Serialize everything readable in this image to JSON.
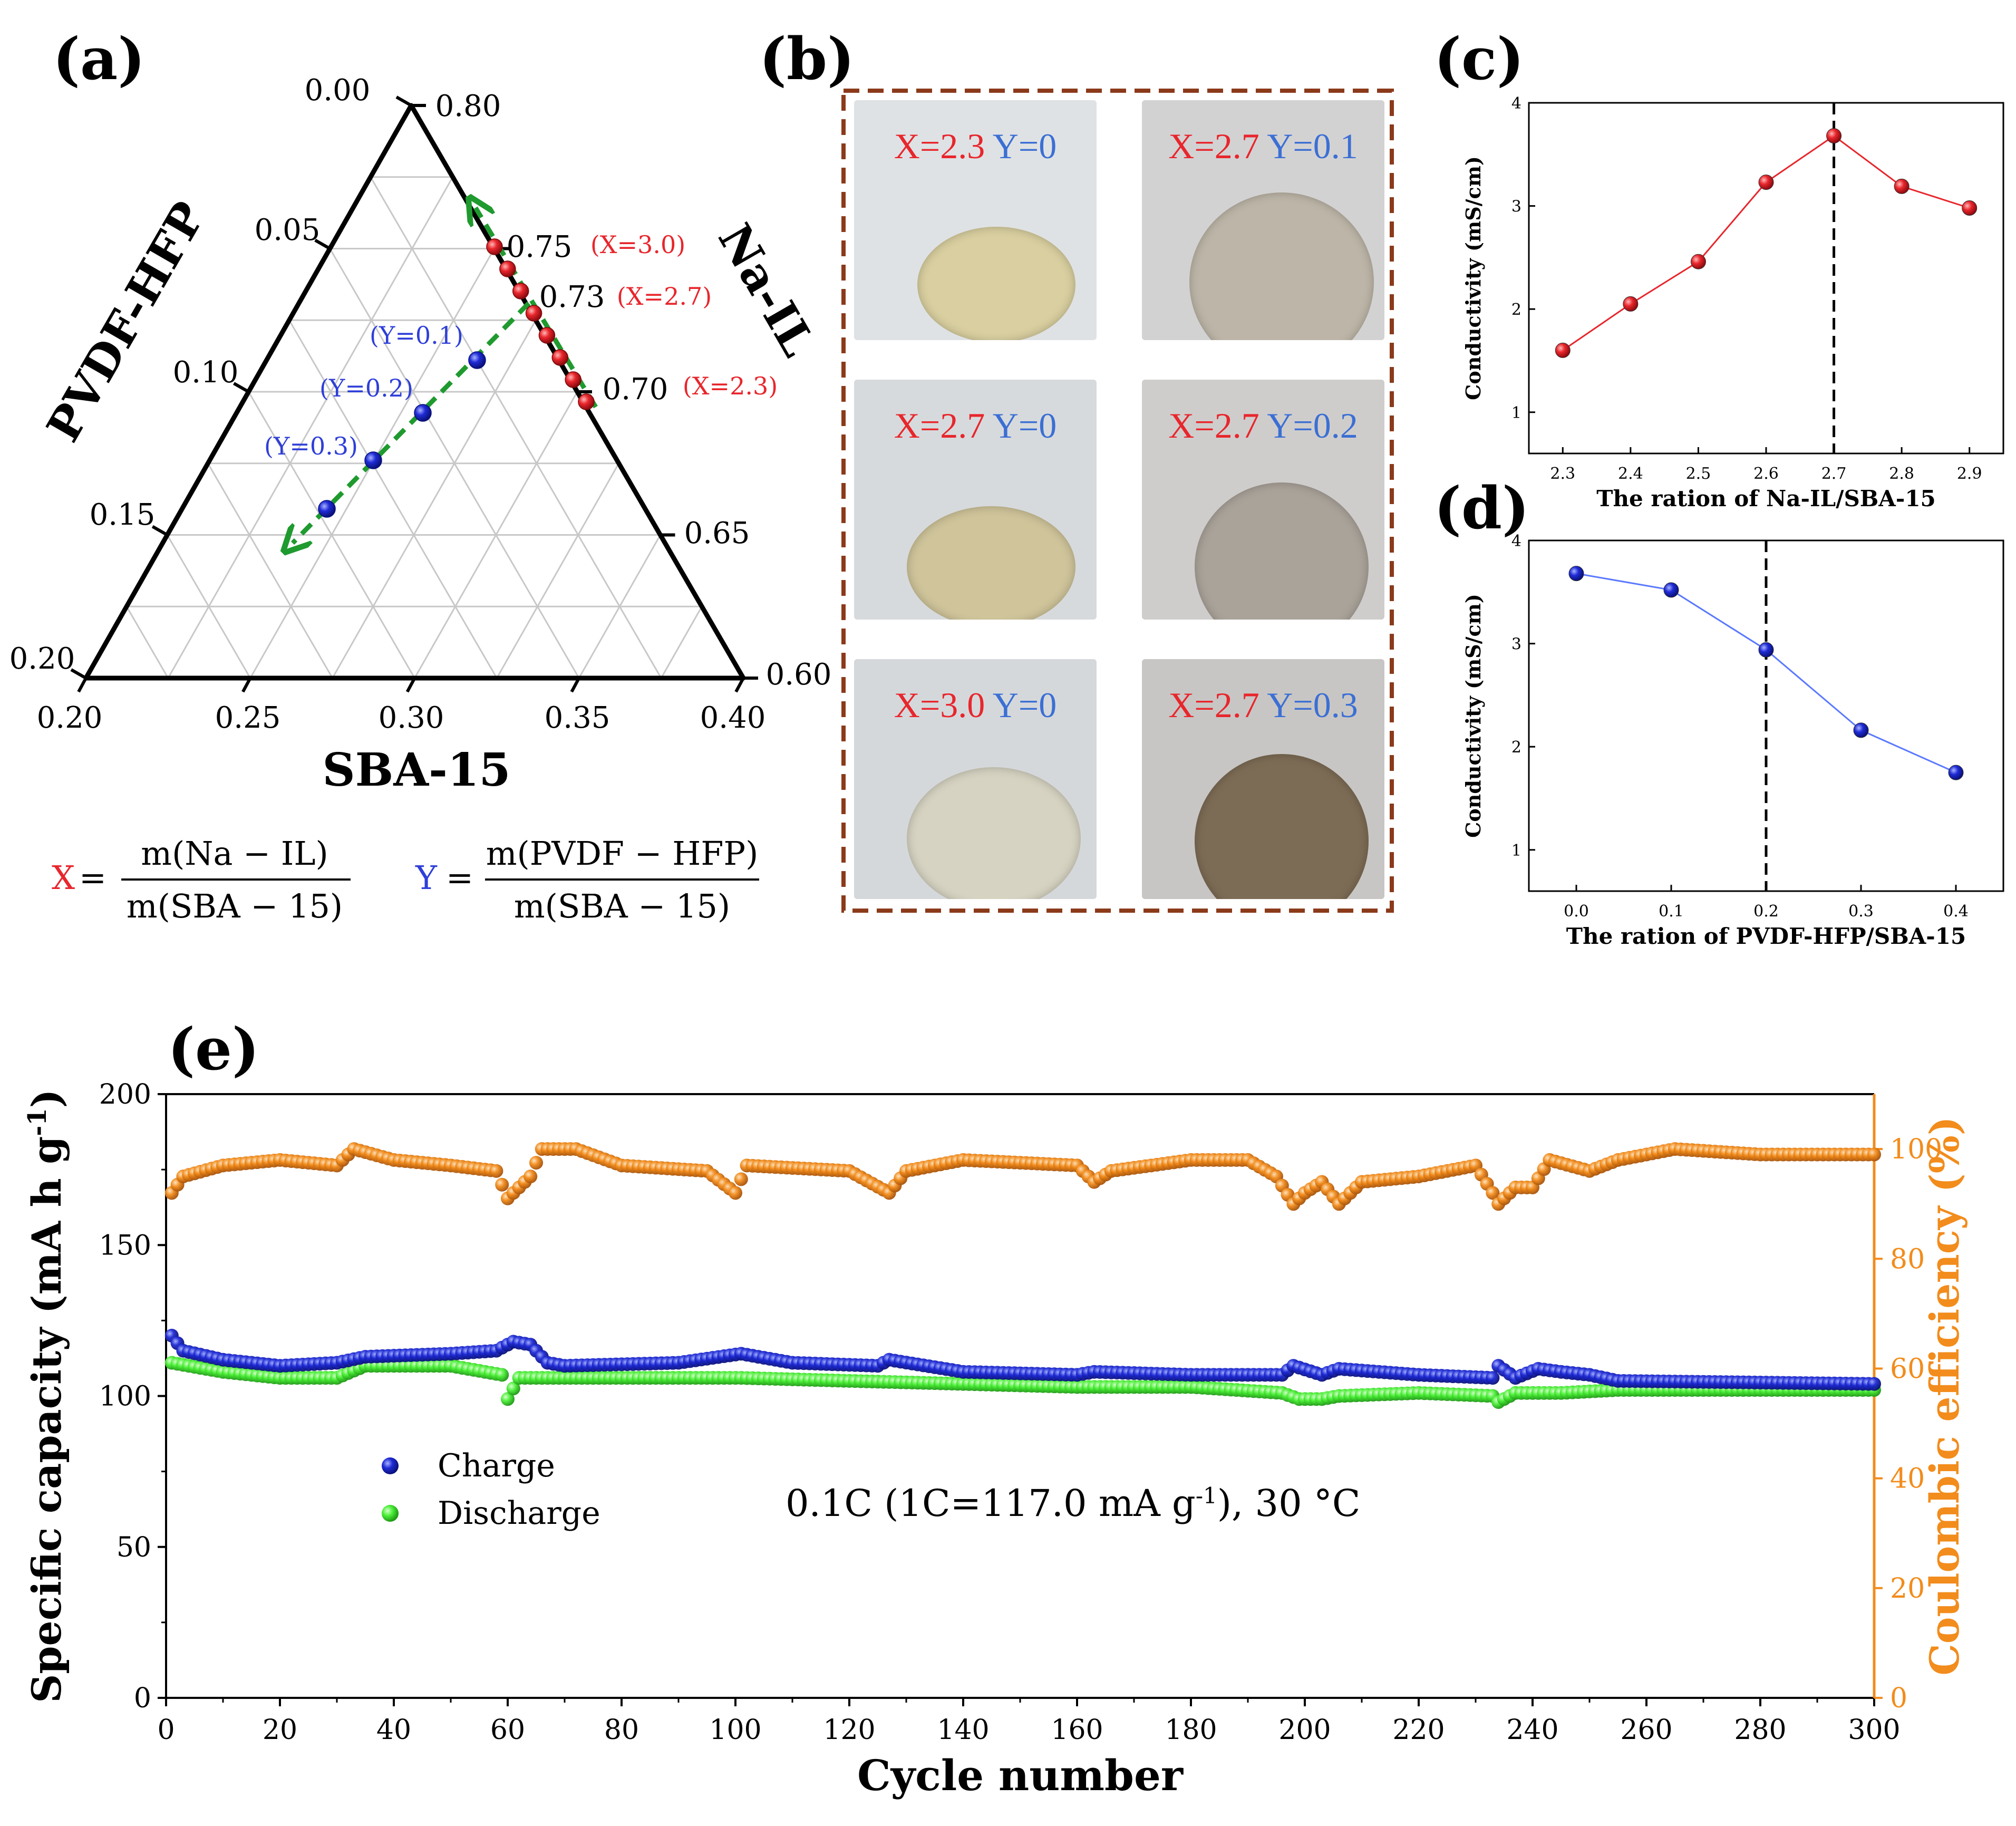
{
  "colors": {
    "red": "#e8262c",
    "blue": "#1f2bd6",
    "blue_label": "#2f3fd8",
    "green": "#1f9a2f",
    "orange": "#f28c1c",
    "frame_brown": "#8b3a1a"
  },
  "panel_labels": {
    "a": "(a)",
    "b": "(b)",
    "c": "(c)",
    "d": "(d)",
    "e": "(e)"
  },
  "ternary": {
    "axis_labels": {
      "left": "PVDF-HFP",
      "right": "Na-IL",
      "bottom": "SBA-15"
    },
    "left_ticks": [
      "0.00",
      "0.05",
      "0.10",
      "0.15",
      "0.20"
    ],
    "right_ticks": [
      "0.80",
      "0.75",
      "0.70",
      "0.65",
      "0.60"
    ],
    "bottom_ticks": [
      "0.20",
      "0.25",
      "0.30",
      "0.35",
      "0.40"
    ],
    "inner_labels": {
      "t073": "0.73"
    },
    "x_labels": [
      "(X=3.0)",
      "(X=2.7)",
      "(X=2.3)"
    ],
    "y_labels": [
      "(Y=0.1)",
      "(Y=0.2)",
      "(Y=0.3)"
    ],
    "x_series_points": 8,
    "y_series_points": 4,
    "formula_x": {
      "symbol": "X",
      "numerator": "m(Na − IL)",
      "denominator": "m(SBA − 15)"
    },
    "formula_y": {
      "symbol": "Y",
      "numerator": "m(PVDF − HFP)",
      "denominator": "m(SBA − 15)"
    }
  },
  "photos": {
    "tiles": [
      {
        "x": "X=2.3",
        "y": "Y=0",
        "disc": "#d9cfa0"
      },
      {
        "x": "X=2.7",
        "y": "Y=0.1",
        "disc": "#bdb6a8"
      },
      {
        "x": "X=2.7",
        "y": "Y=0",
        "disc": "#cfc49a"
      },
      {
        "x": "X=2.7",
        "y": "Y=0.2",
        "disc": "#aaa39a"
      },
      {
        "x": "X=3.0",
        "y": "Y=0",
        "disc": "#d6d3c2"
      },
      {
        "x": "X=2.7",
        "y": "Y=0.3",
        "disc": "#7d6c55"
      }
    ]
  },
  "chart_data": [
    {
      "id": "c",
      "type": "line",
      "x": [
        2.3,
        2.4,
        2.5,
        2.6,
        2.7,
        2.8,
        2.9
      ],
      "y": [
        1.6,
        2.05,
        2.46,
        3.23,
        3.68,
        3.19,
        2.98
      ],
      "xlabel": "The ration of Na-IL/SBA-15",
      "ylabel": "Conductivity (mS/cm)",
      "xlim": [
        2.25,
        2.95
      ],
      "ylim": [
        0.6,
        4.0
      ],
      "xticks": [
        "2.3",
        "2.4",
        "2.5",
        "2.6",
        "2.7",
        "2.8",
        "2.9"
      ],
      "yticks": [
        "1",
        "2",
        "3",
        "4"
      ],
      "marker_line_x": 2.7,
      "color": "#e8262c"
    },
    {
      "id": "d",
      "type": "line",
      "x": [
        0.0,
        0.1,
        0.2,
        0.3,
        0.4
      ],
      "y": [
        3.68,
        3.52,
        2.94,
        2.16,
        1.75
      ],
      "xlabel": "The ration of PVDF-HFP/SBA-15",
      "ylabel": "Conductivity (mS/cm)",
      "xlim": [
        -0.05,
        0.45
      ],
      "ylim": [
        0.6,
        4.0
      ],
      "xticks": [
        "0.0",
        "0.1",
        "0.2",
        "0.3",
        "0.4"
      ],
      "yticks": [
        "1",
        "2",
        "3",
        "4"
      ],
      "marker_line_x": 0.2,
      "color": "#1f2bd6"
    },
    {
      "id": "e",
      "type": "scatter",
      "xlabel": "Cycle number",
      "ylabel": "Specific capacity (mA h g",
      "ylabel_sup": "-1",
      "ylabel_end": ")",
      "y2label": "Coulombic efficiency (%)",
      "xlim": [
        0,
        300
      ],
      "ylim": [
        0,
        200
      ],
      "y2lim": [
        0,
        110
      ],
      "xticks": [
        "0",
        "20",
        "40",
        "60",
        "80",
        "100",
        "120",
        "140",
        "160",
        "180",
        "200",
        "220",
        "240",
        "260",
        "280",
        "300"
      ],
      "yticks": [
        "0",
        "50",
        "100",
        "150",
        "200"
      ],
      "y2ticks": [
        "0",
        "20",
        "40",
        "60",
        "80",
        "100"
      ],
      "annotation": {
        "main": "0.1C (1C=117.0 mA g",
        "sup": "-1",
        "end": "), 30 °C"
      },
      "series": [
        {
          "name": "Charge",
          "color": "#1f2bd6",
          "x_start": 1,
          "x_step": 1,
          "keypoints": [
            [
              1,
              120
            ],
            [
              3,
              115
            ],
            [
              10,
              112
            ],
            [
              20,
              110
            ],
            [
              30,
              111
            ],
            [
              35,
              113
            ],
            [
              50,
              114
            ],
            [
              58,
              115
            ],
            [
              61,
              118
            ],
            [
              64,
              117
            ],
            [
              67,
              111
            ],
            [
              70,
              110
            ],
            [
              90,
              111
            ],
            [
              101,
              114
            ],
            [
              110,
              111
            ],
            [
              125,
              110
            ],
            [
              127,
              112
            ],
            [
              140,
              108
            ],
            [
              160,
              107
            ],
            [
              163,
              108
            ],
            [
              180,
              107
            ],
            [
              196,
              107
            ],
            [
              198,
              110
            ],
            [
              203,
              107
            ],
            [
              206,
              109
            ],
            [
              220,
              107
            ],
            [
              233,
              106
            ],
            [
              234,
              110
            ],
            [
              237,
              106
            ],
            [
              241,
              109
            ],
            [
              245,
              108
            ],
            [
              250,
              107
            ],
            [
              255,
              105
            ],
            [
              300,
              104
            ]
          ]
        },
        {
          "name": "Discharge",
          "color": "#4ef03a",
          "x_start": 1,
          "x_step": 1,
          "keypoints": [
            [
              1,
              111
            ],
            [
              10,
              108
            ],
            [
              20,
              106
            ],
            [
              30,
              106
            ],
            [
              35,
              110
            ],
            [
              50,
              110
            ],
            [
              59,
              107
            ],
            [
              60,
              99
            ],
            [
              62,
              106
            ],
            [
              70,
              106
            ],
            [
              90,
              106
            ],
            [
              101,
              106
            ],
            [
              120,
              105
            ],
            [
              140,
              104
            ],
            [
              160,
              103
            ],
            [
              180,
              103
            ],
            [
              196,
              101
            ],
            [
              199,
              99
            ],
            [
              203,
              99
            ],
            [
              206,
              100
            ],
            [
              220,
              101
            ],
            [
              233,
              100
            ],
            [
              234,
              98
            ],
            [
              237,
              101
            ],
            [
              245,
              101
            ],
            [
              255,
              102
            ],
            [
              300,
              102
            ]
          ]
        },
        {
          "name": "Coulombic efficiency",
          "axis": "right",
          "color": "#f28c1c",
          "x_start": 1,
          "x_step": 1,
          "keypoints": [
            [
              1,
              92
            ],
            [
              3,
              95
            ],
            [
              10,
              97
            ],
            [
              20,
              98
            ],
            [
              30,
              97
            ],
            [
              33,
              100
            ],
            [
              40,
              98
            ],
            [
              50,
              97
            ],
            [
              58,
              96
            ],
            [
              60,
              91
            ],
            [
              62,
              93
            ],
            [
              64,
              95
            ],
            [
              66,
              100
            ],
            [
              72,
              100
            ],
            [
              80,
              97
            ],
            [
              95,
              96
            ],
            [
              100,
              92
            ],
            [
              102,
              97
            ],
            [
              120,
              96
            ],
            [
              127,
              92
            ],
            [
              130,
              96
            ],
            [
              140,
              98
            ],
            [
              160,
              97
            ],
            [
              163,
              94
            ],
            [
              166,
              96
            ],
            [
              180,
              98
            ],
            [
              190,
              98
            ],
            [
              195,
              95
            ],
            [
              198,
              90
            ],
            [
              200,
              92
            ],
            [
              203,
              94
            ],
            [
              206,
              90
            ],
            [
              210,
              94
            ],
            [
              220,
              95
            ],
            [
              225,
              96
            ],
            [
              230,
              97
            ],
            [
              233,
              92
            ],
            [
              234,
              90
            ],
            [
              237,
              93
            ],
            [
              240,
              93
            ],
            [
              243,
              98
            ],
            [
              250,
              96
            ],
            [
              255,
              98
            ],
            [
              265,
              100
            ],
            [
              280,
              99
            ],
            [
              300,
              99
            ]
          ]
        }
      ]
    }
  ]
}
